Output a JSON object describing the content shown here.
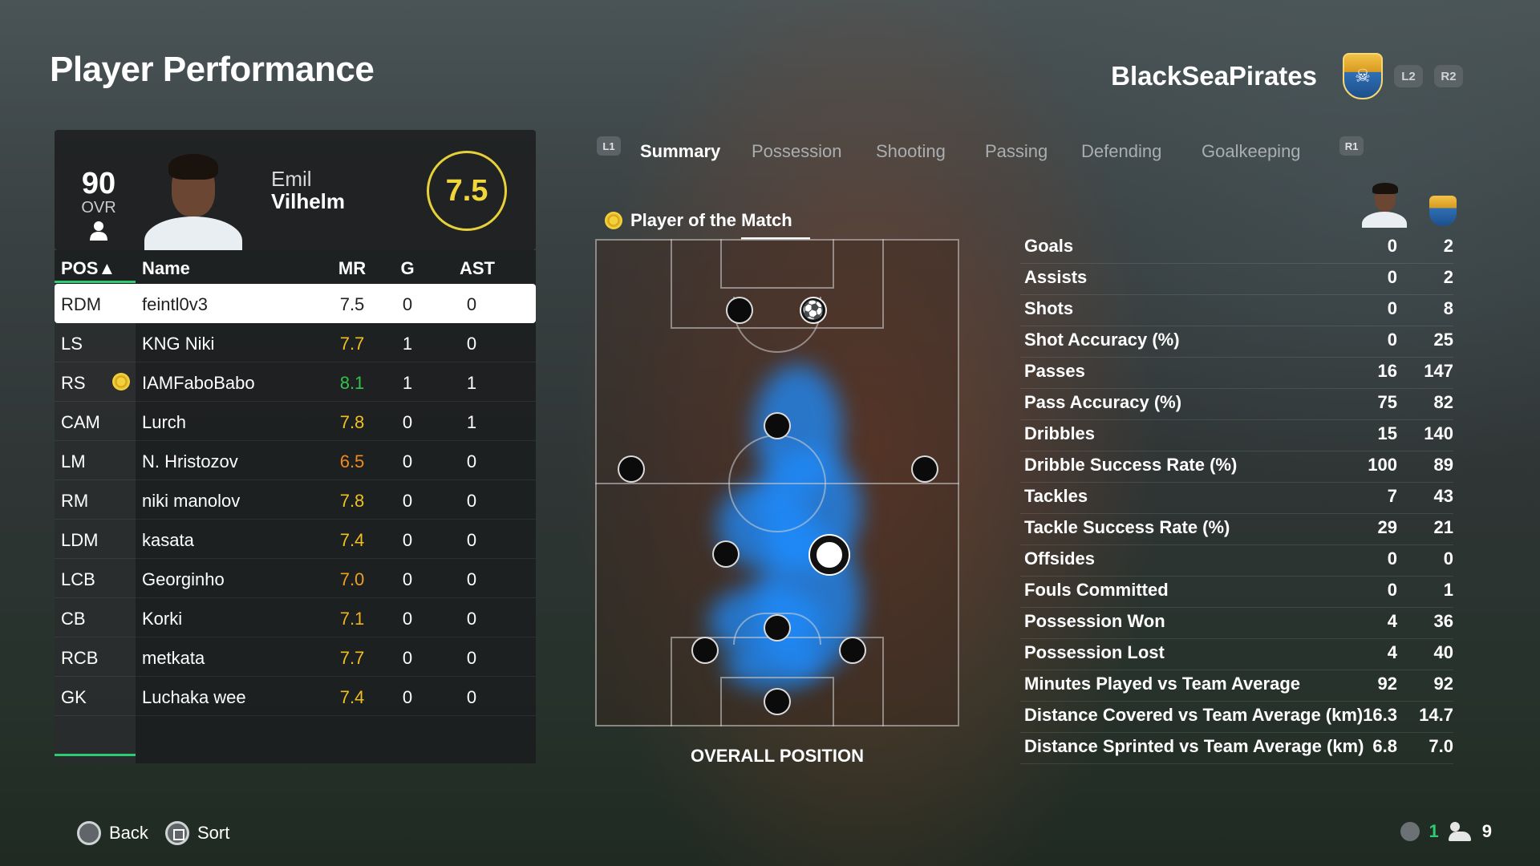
{
  "header": {
    "title": "Player Performance",
    "team_name": "BlackSeaPirates",
    "l2": "L2",
    "r2": "R2"
  },
  "player": {
    "ovr": "90",
    "ovr_label": "OVR",
    "first_name": "Emil",
    "last_name": "Vilhelm",
    "rating": "7.5"
  },
  "table": {
    "headers": {
      "pos": "POS▲",
      "name": "Name",
      "mr": "MR",
      "g": "G",
      "ast": "AST"
    },
    "rows": [
      {
        "pos": "RDM",
        "name": "feintl0v3",
        "mr": "7.5",
        "g": "0",
        "ast": "0",
        "mr_color": "#1e2022",
        "motm": false
      },
      {
        "pos": "LS",
        "name": "KNG Niki",
        "mr": "7.7",
        "g": "1",
        "ast": "0",
        "mr_color": "#f0c020",
        "motm": false
      },
      {
        "pos": "RS",
        "name": "IAMFaboBabo",
        "mr": "8.1",
        "g": "1",
        "ast": "1",
        "mr_color": "#35c24a",
        "motm": true
      },
      {
        "pos": "CAM",
        "name": "Lurch",
        "mr": "7.8",
        "g": "0",
        "ast": "1",
        "mr_color": "#f0c020",
        "motm": false
      },
      {
        "pos": "LM",
        "name": "N. Hristozov",
        "mr": "6.5",
        "g": "0",
        "ast": "0",
        "mr_color": "#f08a1c",
        "motm": false
      },
      {
        "pos": "RM",
        "name": "niki manolov",
        "mr": "7.8",
        "g": "0",
        "ast": "0",
        "mr_color": "#f0c020",
        "motm": false
      },
      {
        "pos": "LDM",
        "name": "kasata",
        "mr": "7.4",
        "g": "0",
        "ast": "0",
        "mr_color": "#f0c020",
        "motm": false
      },
      {
        "pos": "LCB",
        "name": "Georginho",
        "mr": "7.0",
        "g": "0",
        "ast": "0",
        "mr_color": "#f0a020",
        "motm": false
      },
      {
        "pos": "CB",
        "name": "Korki",
        "mr": "7.1",
        "g": "0",
        "ast": "0",
        "mr_color": "#f0b020",
        "motm": false
      },
      {
        "pos": "RCB",
        "name": "metkata",
        "mr": "7.7",
        "g": "0",
        "ast": "0",
        "mr_color": "#f0c020",
        "motm": false
      },
      {
        "pos": "GK",
        "name": "Luchaka wee",
        "mr": "7.4",
        "g": "0",
        "ast": "0",
        "mr_color": "#f0c020",
        "motm": false
      }
    ]
  },
  "tabs": {
    "l1": "L1",
    "r1": "R1",
    "items": [
      "Summary",
      "Possession",
      "Shooting",
      "Passing",
      "Defending",
      "Goalkeeping"
    ],
    "active": "Summary"
  },
  "pitch": {
    "motm_label": "Player of the Match",
    "caption": "OVERALL POSITION"
  },
  "stats": [
    {
      "label": "Goals",
      "player": "0",
      "team": "2"
    },
    {
      "label": "Assists",
      "player": "0",
      "team": "2"
    },
    {
      "label": "Shots",
      "player": "0",
      "team": "8"
    },
    {
      "label": "Shot Accuracy (%)",
      "player": "0",
      "team": "25"
    },
    {
      "label": "Passes",
      "player": "16",
      "team": "147"
    },
    {
      "label": "Pass Accuracy (%)",
      "player": "75",
      "team": "82"
    },
    {
      "label": "Dribbles",
      "player": "15",
      "team": "140"
    },
    {
      "label": "Dribble Success Rate (%)",
      "player": "100",
      "team": "89"
    },
    {
      "label": "Tackles",
      "player": "7",
      "team": "43"
    },
    {
      "label": "Tackle Success Rate (%)",
      "player": "29",
      "team": "21"
    },
    {
      "label": "Offsides",
      "player": "0",
      "team": "0"
    },
    {
      "label": "Fouls Committed",
      "player": "0",
      "team": "1"
    },
    {
      "label": "Possession Won",
      "player": "4",
      "team": "36"
    },
    {
      "label": "Possession Lost",
      "player": "4",
      "team": "40"
    },
    {
      "label": "Minutes Played vs Team Average",
      "player": "92",
      "team": "92"
    },
    {
      "label": "Distance Covered vs Team Average (km)",
      "player": "16.3",
      "team": "14.7"
    },
    {
      "label": "Distance Sprinted vs Team Average (km)",
      "player": "6.8",
      "team": "7.0"
    }
  ],
  "footer": {
    "back": "Back",
    "sort": "Sort",
    "mic_count": "1",
    "players_count": "9"
  },
  "icons": {
    "crest": "team-crest-icon",
    "motm": "star-ball-icon",
    "person": "person-icon",
    "mic": "microphone-icon",
    "players": "people-icon"
  }
}
